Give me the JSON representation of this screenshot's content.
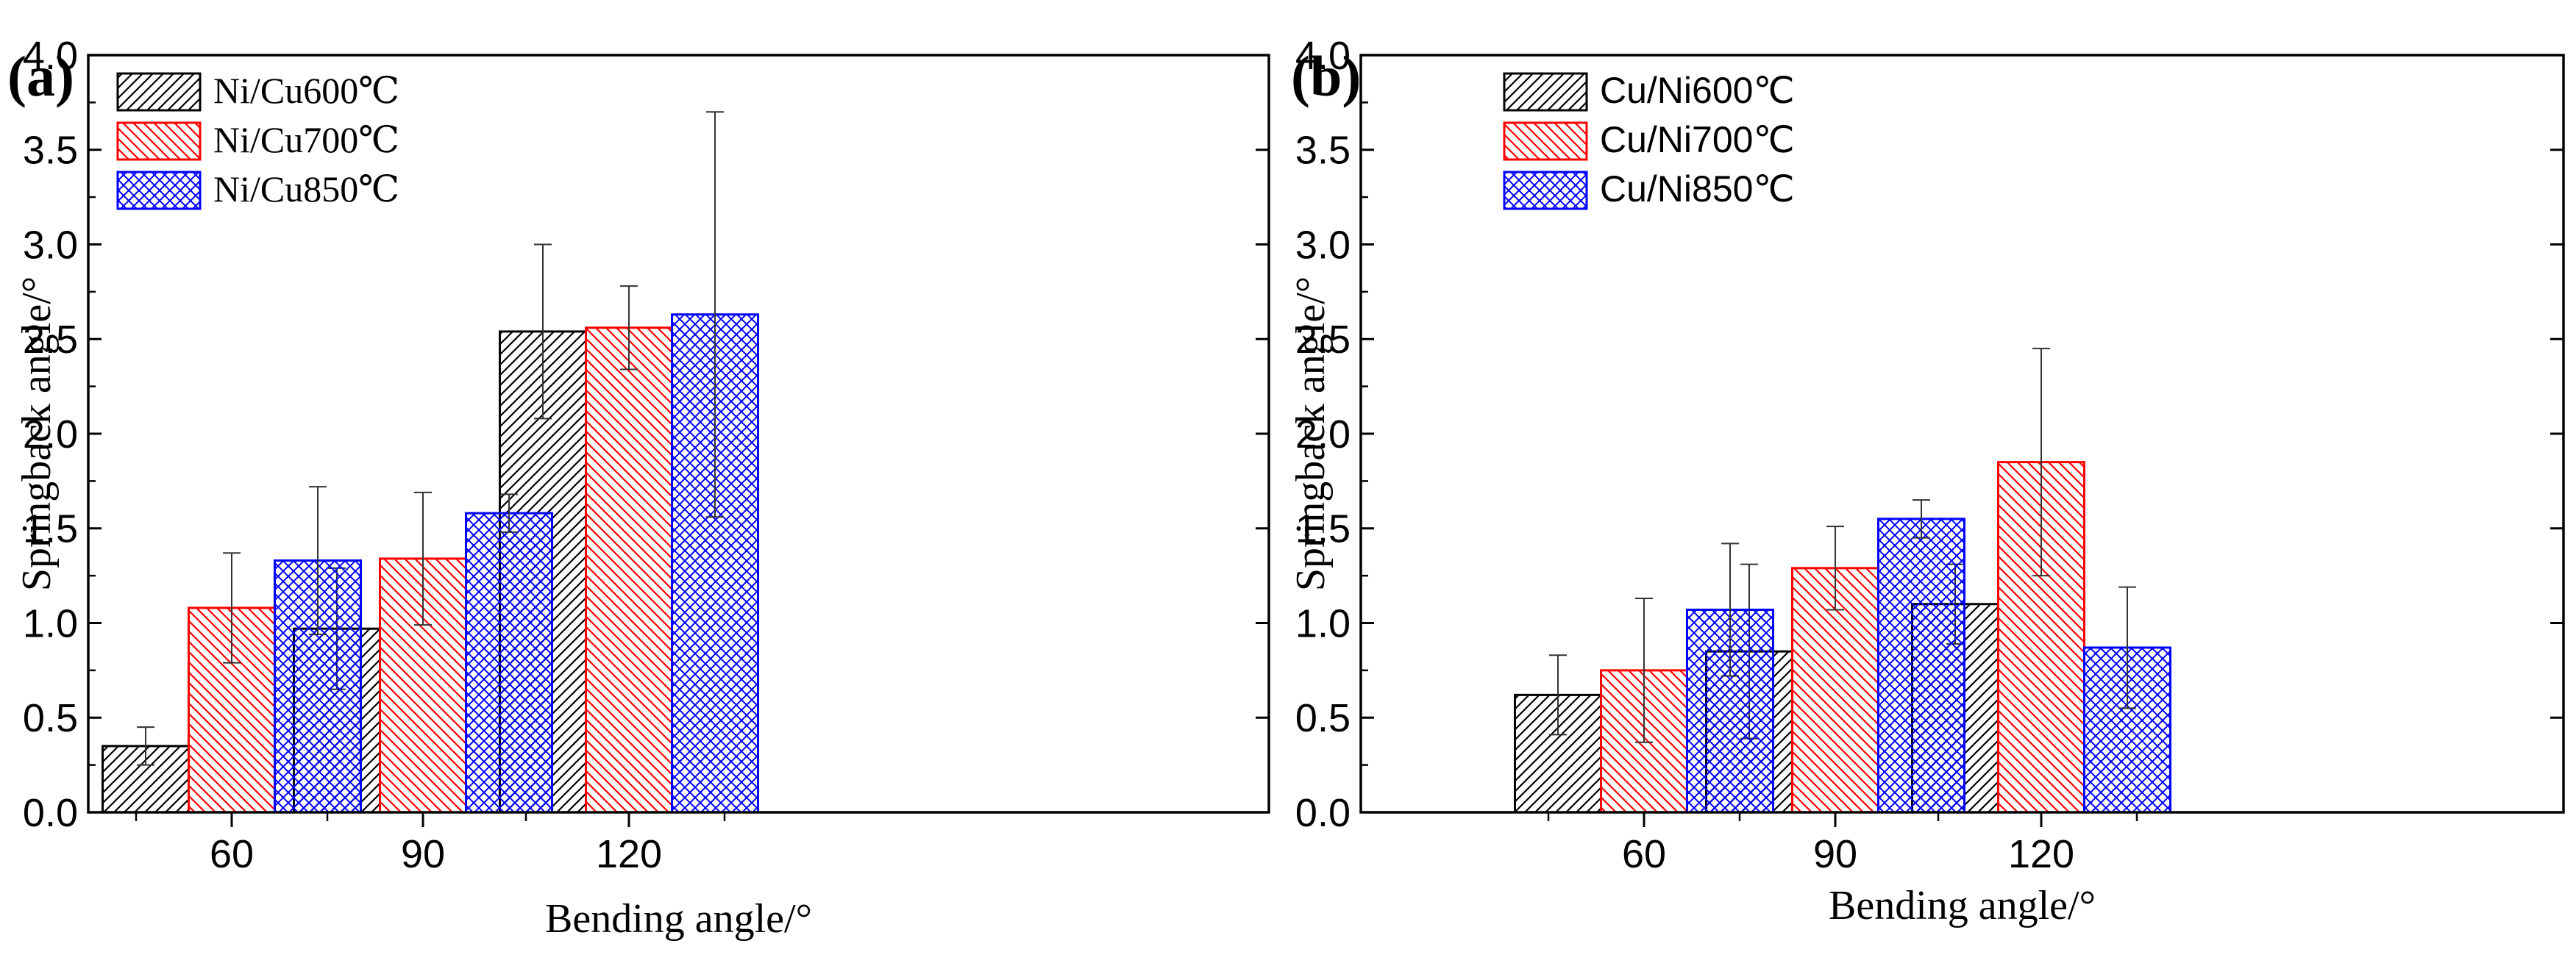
{
  "chart_data": [
    {
      "panel_label": "(a)",
      "type": "bar",
      "title": "",
      "xlabel": "Bending angle/°",
      "ylabel": "Springback angle/°",
      "categories": [
        "60",
        "90",
        "120"
      ],
      "ylim": [
        0,
        4.0
      ],
      "yticks": [
        "0.0",
        "0.5",
        "1.0",
        "1.5",
        "2.0",
        "2.5",
        "3.0",
        "3.5",
        "4.0"
      ],
      "grid": false,
      "legend_position": "top-left",
      "label_font": "serif",
      "series": [
        {
          "name": "Ni/Cu600℃",
          "color": "#000000",
          "pattern": "diag-up",
          "values": [
            0.35,
            0.97,
            2.54
          ],
          "errors": [
            0.1,
            0.32,
            0.46
          ]
        },
        {
          "name": "Ni/Cu700℃",
          "color": "#ff0000",
          "pattern": "diag-down",
          "values": [
            1.08,
            1.34,
            2.56
          ],
          "errors": [
            0.29,
            0.35,
            0.22
          ]
        },
        {
          "name": "Ni/Cu850℃",
          "color": "#0000ff",
          "pattern": "crosshatch",
          "values": [
            1.33,
            1.58,
            2.63
          ],
          "errors": [
            0.39,
            0.1,
            1.07
          ]
        }
      ]
    },
    {
      "panel_label": "(b)",
      "type": "bar",
      "title": "",
      "xlabel": "Bending angle/°",
      "ylabel": "Springback angle/°",
      "categories": [
        "60",
        "90",
        "120"
      ],
      "ylim": [
        0,
        4.0
      ],
      "yticks": [
        "0.0",
        "0.5",
        "1.0",
        "1.5",
        "2.0",
        "2.5",
        "3.0",
        "3.5",
        "4.0"
      ],
      "grid": false,
      "legend_position": "top-left",
      "label_font": "sans",
      "series": [
        {
          "name": "Cu/Ni600℃",
          "color": "#000000",
          "pattern": "diag-up",
          "values": [
            0.62,
            0.85,
            1.1
          ],
          "errors": [
            0.21,
            0.46,
            0.21
          ]
        },
        {
          "name": "Cu/Ni700℃",
          "color": "#ff0000",
          "pattern": "diag-down",
          "values": [
            0.75,
            1.29,
            1.85
          ],
          "errors": [
            0.38,
            0.22,
            0.6
          ]
        },
        {
          "name": "Cu/Ni850℃",
          "color": "#0000ff",
          "pattern": "crosshatch",
          "values": [
            1.07,
            1.55,
            0.87
          ],
          "errors": [
            0.35,
            0.1,
            0.32
          ]
        }
      ]
    }
  ]
}
